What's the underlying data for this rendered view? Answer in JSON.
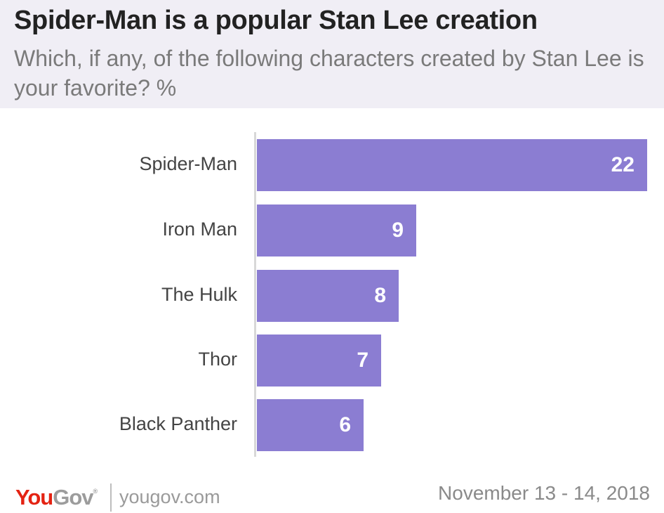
{
  "header": {
    "title": "Spider-Man is a popular Stan Lee creation",
    "subtitle": "Which, if any, of the following characters created by Stan Lee is your favorite? %"
  },
  "colors": {
    "bar": "#8b7dd2",
    "header_bg": "#f0eef5",
    "logo_red": "#e42313",
    "logo_gray": "#9c9c9c"
  },
  "chart_data": {
    "type": "bar",
    "orientation": "horizontal",
    "title": "Spider-Man is a popular Stan Lee creation",
    "subtitle": "Which, if any, of the following characters created by Stan Lee is your favorite? %",
    "categories": [
      "Spider-Man",
      "Iron Man",
      "The Hulk",
      "Thor",
      "Black Panther"
    ],
    "values": [
      22,
      9,
      8,
      7,
      6
    ],
    "labels": [
      "22",
      "9",
      "8",
      "7",
      "6"
    ],
    "xlabel": "",
    "ylabel": "",
    "unit": "%",
    "grid": false,
    "legend": null
  },
  "footer": {
    "logo_you": "You",
    "logo_gov": "Gov",
    "logo_reg": "®",
    "url": "yougov.com",
    "date": "November 13 - 14, 2018"
  }
}
